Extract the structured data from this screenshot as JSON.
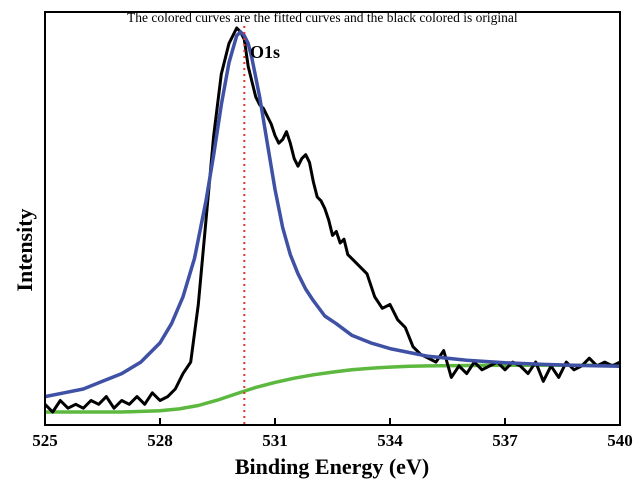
{
  "chart_data": {
    "type": "line",
    "title": "",
    "annotation": "The colored curves are the fitted curves and the black colored is original",
    "peak_label": "O1s",
    "peak_position": 530.2,
    "xlabel": "Binding Energy (eV)",
    "ylabel": "Intensity",
    "xlim": [
      525,
      540
    ],
    "ylim": [
      0,
      1
    ],
    "x_ticks": [
      525,
      528,
      531,
      534,
      537,
      540
    ],
    "y_ticks_shown": false,
    "grid": false,
    "colors": {
      "original": "#000000",
      "fit_peak": "#3f51a5",
      "fit_background": "#5cb83e",
      "peak_marker": "#e8322a"
    },
    "series": [
      {
        "color_key": "original",
        "x": [
          525.0,
          525.2,
          525.4,
          525.6,
          525.8,
          526.0,
          526.2,
          526.4,
          526.6,
          526.8,
          527.0,
          527.2,
          527.4,
          527.6,
          527.8,
          528.0,
          528.2,
          528.4,
          528.6,
          528.8,
          529.0,
          529.2,
          529.4,
          529.6,
          529.8,
          530.0,
          530.1,
          530.2,
          530.3,
          530.4,
          530.5,
          530.6,
          530.7,
          530.8,
          530.9,
          531.0,
          531.1,
          531.2,
          531.3,
          531.4,
          531.5,
          531.6,
          531.7,
          531.8,
          531.9,
          532.0,
          532.1,
          532.2,
          532.3,
          532.4,
          532.5,
          532.6,
          532.7,
          532.8,
          532.9,
          533.0,
          533.2,
          533.4,
          533.6,
          533.8,
          534.0,
          534.2,
          534.4,
          534.6,
          534.8,
          535.0,
          535.2,
          535.4,
          535.6,
          535.8,
          536.0,
          536.2,
          536.4,
          536.6,
          536.8,
          537.0,
          537.2,
          537.4,
          537.6,
          537.8,
          538.0,
          538.2,
          538.4,
          538.6,
          538.8,
          539.0,
          539.2,
          539.4,
          539.6,
          539.8,
          540.0
        ],
        "y": [
          0.02,
          0.0,
          0.03,
          0.01,
          0.02,
          0.01,
          0.03,
          0.02,
          0.04,
          0.01,
          0.03,
          0.02,
          0.04,
          0.02,
          0.05,
          0.03,
          0.04,
          0.06,
          0.1,
          0.13,
          0.28,
          0.5,
          0.72,
          0.88,
          0.96,
          1.0,
          0.99,
          0.97,
          0.9,
          0.86,
          0.82,
          0.8,
          0.79,
          0.77,
          0.75,
          0.72,
          0.7,
          0.71,
          0.73,
          0.7,
          0.66,
          0.64,
          0.66,
          0.67,
          0.65,
          0.6,
          0.56,
          0.55,
          0.53,
          0.5,
          0.46,
          0.47,
          0.44,
          0.45,
          0.41,
          0.4,
          0.38,
          0.36,
          0.3,
          0.27,
          0.28,
          0.24,
          0.22,
          0.17,
          0.15,
          0.14,
          0.13,
          0.16,
          0.09,
          0.12,
          0.1,
          0.13,
          0.11,
          0.12,
          0.13,
          0.11,
          0.13,
          0.12,
          0.1,
          0.13,
          0.08,
          0.12,
          0.09,
          0.13,
          0.11,
          0.12,
          0.14,
          0.12,
          0.13,
          0.12,
          0.13
        ]
      },
      {
        "color_key": "fit_peak",
        "x": [
          525.0,
          525.5,
          526.0,
          526.5,
          527.0,
          527.5,
          528.0,
          528.3,
          528.6,
          528.9,
          529.2,
          529.4,
          529.6,
          529.8,
          530.0,
          530.1,
          530.2,
          530.3,
          530.4,
          530.6,
          530.8,
          531.0,
          531.2,
          531.4,
          531.6,
          531.8,
          532.0,
          532.3,
          532.6,
          533.0,
          533.5,
          534.0,
          534.5,
          535.0,
          536.0,
          537.0,
          538.0,
          539.0,
          540.0
        ],
        "y": [
          0.04,
          0.05,
          0.06,
          0.08,
          0.1,
          0.13,
          0.18,
          0.23,
          0.3,
          0.4,
          0.55,
          0.67,
          0.8,
          0.91,
          0.98,
          0.99,
          0.98,
          0.96,
          0.92,
          0.82,
          0.7,
          0.58,
          0.48,
          0.41,
          0.36,
          0.32,
          0.29,
          0.25,
          0.23,
          0.2,
          0.18,
          0.165,
          0.155,
          0.145,
          0.135,
          0.128,
          0.124,
          0.121,
          0.119
        ]
      },
      {
        "color_key": "fit_background",
        "x": [
          525.0,
          526.0,
          527.0,
          528.0,
          528.5,
          529.0,
          529.5,
          530.0,
          530.5,
          531.0,
          531.5,
          532.0,
          532.5,
          533.0,
          533.5,
          534.0,
          534.5,
          535.0,
          536.0,
          537.0,
          538.0,
          539.0,
          540.0
        ],
        "y": [
          0.0,
          0.0,
          0.0,
          0.003,
          0.008,
          0.017,
          0.031,
          0.048,
          0.064,
          0.077,
          0.088,
          0.097,
          0.104,
          0.11,
          0.114,
          0.117,
          0.119,
          0.12,
          0.121,
          0.122,
          0.122,
          0.122,
          0.122
        ]
      }
    ]
  }
}
